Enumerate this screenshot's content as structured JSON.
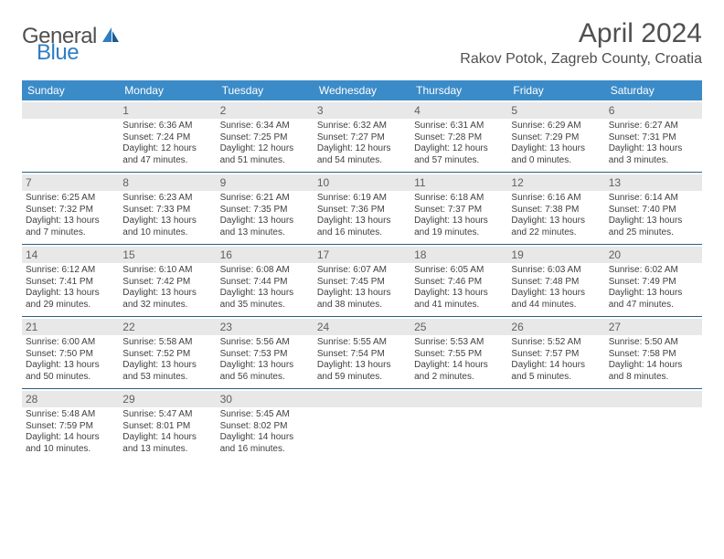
{
  "brand": {
    "name_part1": "General",
    "name_part2": "Blue"
  },
  "title": "April 2024",
  "location": "Rakov Potok, Zagreb County, Croatia",
  "header_bg": "#3b8bc8",
  "divider_color": "#2b5f85",
  "daynum_bg": "#e8e8e8",
  "text_color": "#404040",
  "days_of_week": [
    "Sunday",
    "Monday",
    "Tuesday",
    "Wednesday",
    "Thursday",
    "Friday",
    "Saturday"
  ],
  "weeks": [
    [
      {
        "n": "",
        "lines": []
      },
      {
        "n": "1",
        "lines": [
          "Sunrise: 6:36 AM",
          "Sunset: 7:24 PM",
          "Daylight: 12 hours",
          "and 47 minutes."
        ]
      },
      {
        "n": "2",
        "lines": [
          "Sunrise: 6:34 AM",
          "Sunset: 7:25 PM",
          "Daylight: 12 hours",
          "and 51 minutes."
        ]
      },
      {
        "n": "3",
        "lines": [
          "Sunrise: 6:32 AM",
          "Sunset: 7:27 PM",
          "Daylight: 12 hours",
          "and 54 minutes."
        ]
      },
      {
        "n": "4",
        "lines": [
          "Sunrise: 6:31 AM",
          "Sunset: 7:28 PM",
          "Daylight: 12 hours",
          "and 57 minutes."
        ]
      },
      {
        "n": "5",
        "lines": [
          "Sunrise: 6:29 AM",
          "Sunset: 7:29 PM",
          "Daylight: 13 hours",
          "and 0 minutes."
        ]
      },
      {
        "n": "6",
        "lines": [
          "Sunrise: 6:27 AM",
          "Sunset: 7:31 PM",
          "Daylight: 13 hours",
          "and 3 minutes."
        ]
      }
    ],
    [
      {
        "n": "7",
        "lines": [
          "Sunrise: 6:25 AM",
          "Sunset: 7:32 PM",
          "Daylight: 13 hours",
          "and 7 minutes."
        ]
      },
      {
        "n": "8",
        "lines": [
          "Sunrise: 6:23 AM",
          "Sunset: 7:33 PM",
          "Daylight: 13 hours",
          "and 10 minutes."
        ]
      },
      {
        "n": "9",
        "lines": [
          "Sunrise: 6:21 AM",
          "Sunset: 7:35 PM",
          "Daylight: 13 hours",
          "and 13 minutes."
        ]
      },
      {
        "n": "10",
        "lines": [
          "Sunrise: 6:19 AM",
          "Sunset: 7:36 PM",
          "Daylight: 13 hours",
          "and 16 minutes."
        ]
      },
      {
        "n": "11",
        "lines": [
          "Sunrise: 6:18 AM",
          "Sunset: 7:37 PM",
          "Daylight: 13 hours",
          "and 19 minutes."
        ]
      },
      {
        "n": "12",
        "lines": [
          "Sunrise: 6:16 AM",
          "Sunset: 7:38 PM",
          "Daylight: 13 hours",
          "and 22 minutes."
        ]
      },
      {
        "n": "13",
        "lines": [
          "Sunrise: 6:14 AM",
          "Sunset: 7:40 PM",
          "Daylight: 13 hours",
          "and 25 minutes."
        ]
      }
    ],
    [
      {
        "n": "14",
        "lines": [
          "Sunrise: 6:12 AM",
          "Sunset: 7:41 PM",
          "Daylight: 13 hours",
          "and 29 minutes."
        ]
      },
      {
        "n": "15",
        "lines": [
          "Sunrise: 6:10 AM",
          "Sunset: 7:42 PM",
          "Daylight: 13 hours",
          "and 32 minutes."
        ]
      },
      {
        "n": "16",
        "lines": [
          "Sunrise: 6:08 AM",
          "Sunset: 7:44 PM",
          "Daylight: 13 hours",
          "and 35 minutes."
        ]
      },
      {
        "n": "17",
        "lines": [
          "Sunrise: 6:07 AM",
          "Sunset: 7:45 PM",
          "Daylight: 13 hours",
          "and 38 minutes."
        ]
      },
      {
        "n": "18",
        "lines": [
          "Sunrise: 6:05 AM",
          "Sunset: 7:46 PM",
          "Daylight: 13 hours",
          "and 41 minutes."
        ]
      },
      {
        "n": "19",
        "lines": [
          "Sunrise: 6:03 AM",
          "Sunset: 7:48 PM",
          "Daylight: 13 hours",
          "and 44 minutes."
        ]
      },
      {
        "n": "20",
        "lines": [
          "Sunrise: 6:02 AM",
          "Sunset: 7:49 PM",
          "Daylight: 13 hours",
          "and 47 minutes."
        ]
      }
    ],
    [
      {
        "n": "21",
        "lines": [
          "Sunrise: 6:00 AM",
          "Sunset: 7:50 PM",
          "Daylight: 13 hours",
          "and 50 minutes."
        ]
      },
      {
        "n": "22",
        "lines": [
          "Sunrise: 5:58 AM",
          "Sunset: 7:52 PM",
          "Daylight: 13 hours",
          "and 53 minutes."
        ]
      },
      {
        "n": "23",
        "lines": [
          "Sunrise: 5:56 AM",
          "Sunset: 7:53 PM",
          "Daylight: 13 hours",
          "and 56 minutes."
        ]
      },
      {
        "n": "24",
        "lines": [
          "Sunrise: 5:55 AM",
          "Sunset: 7:54 PM",
          "Daylight: 13 hours",
          "and 59 minutes."
        ]
      },
      {
        "n": "25",
        "lines": [
          "Sunrise: 5:53 AM",
          "Sunset: 7:55 PM",
          "Daylight: 14 hours",
          "and 2 minutes."
        ]
      },
      {
        "n": "26",
        "lines": [
          "Sunrise: 5:52 AM",
          "Sunset: 7:57 PM",
          "Daylight: 14 hours",
          "and 5 minutes."
        ]
      },
      {
        "n": "27",
        "lines": [
          "Sunrise: 5:50 AM",
          "Sunset: 7:58 PM",
          "Daylight: 14 hours",
          "and 8 minutes."
        ]
      }
    ],
    [
      {
        "n": "28",
        "lines": [
          "Sunrise: 5:48 AM",
          "Sunset: 7:59 PM",
          "Daylight: 14 hours",
          "and 10 minutes."
        ]
      },
      {
        "n": "29",
        "lines": [
          "Sunrise: 5:47 AM",
          "Sunset: 8:01 PM",
          "Daylight: 14 hours",
          "and 13 minutes."
        ]
      },
      {
        "n": "30",
        "lines": [
          "Sunrise: 5:45 AM",
          "Sunset: 8:02 PM",
          "Daylight: 14 hours",
          "and 16 minutes."
        ]
      },
      {
        "n": "",
        "lines": []
      },
      {
        "n": "",
        "lines": []
      },
      {
        "n": "",
        "lines": []
      },
      {
        "n": "",
        "lines": []
      }
    ]
  ]
}
